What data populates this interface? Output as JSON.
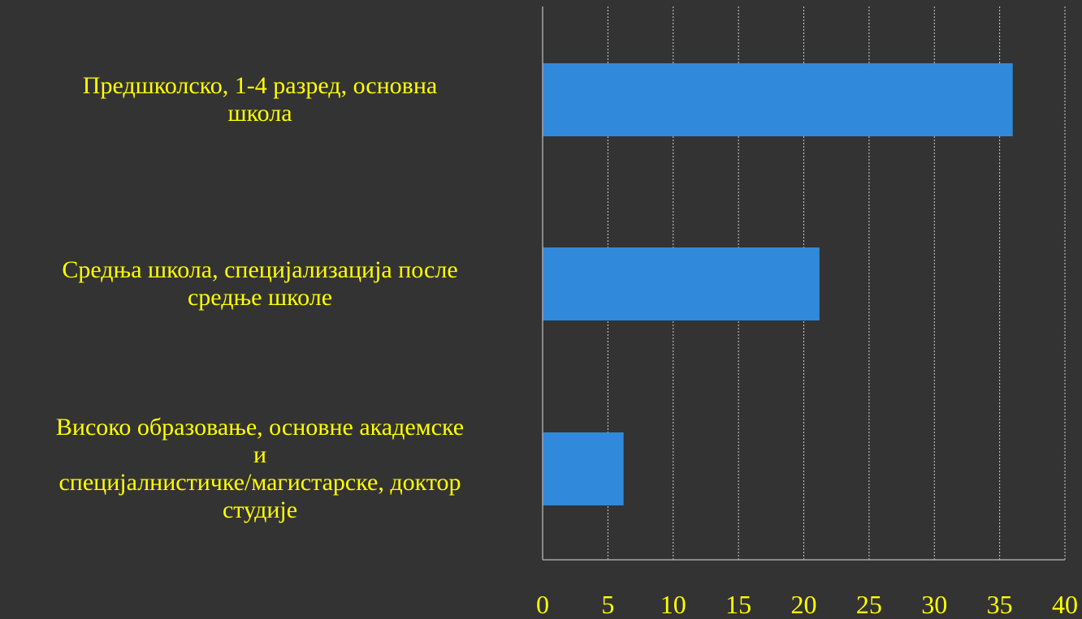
{
  "chart_data": {
    "type": "bar",
    "orientation": "horizontal",
    "categories": [
      "Предшколско, 1-4 разред, основна\nшкола",
      "Средња школа, специјализација после\nсредње школе",
      "Високо образовање, основне академске\nи\nспецијалнистичке/магистарске, доктор\nстудије"
    ],
    "values": [
      36,
      21.2,
      6.2
    ],
    "xlim": [
      0,
      40
    ],
    "xticks": [
      "0",
      "5",
      "10",
      "15",
      "20",
      "25",
      "30",
      "35",
      "40"
    ],
    "grid": true,
    "colors": {
      "background": "#333333",
      "bar": "#3189dc",
      "text": "#ffff00",
      "axis": "#a6a6a6",
      "grid": "#d0d0d0"
    }
  }
}
